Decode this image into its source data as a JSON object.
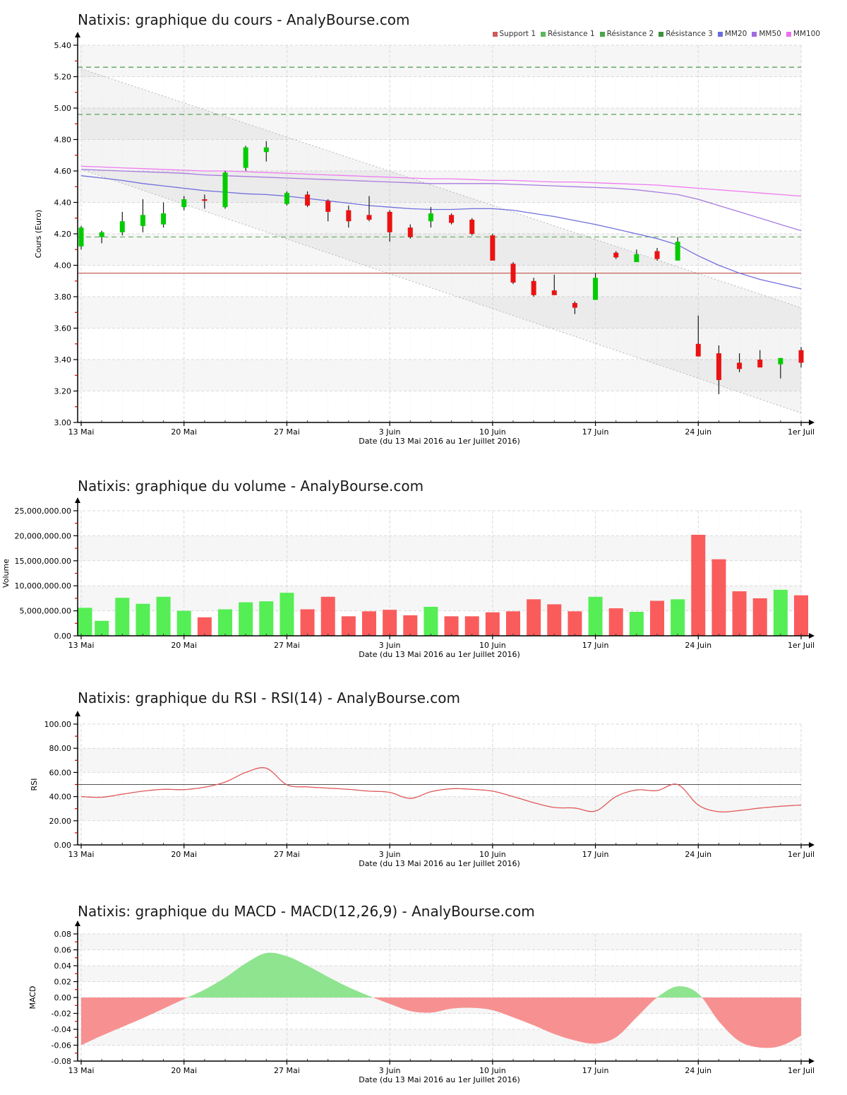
{
  "chart_data": [
    {
      "id": "cours",
      "type": "candlestick",
      "title": "Natixis: graphique du cours - AnalyBourse.com",
      "xlabel": "Date (du 13 Mai 2016 au 1er Juillet 2016)",
      "ylabel": "Cours (Euro)",
      "ylim": [
        3.0,
        5.4
      ],
      "y_tick_labels": [
        "3.00",
        "3.20",
        "3.40",
        "3.60",
        "3.80",
        "4.00",
        "4.20",
        "4.40",
        "4.60",
        "4.80",
        "5.00",
        "5.20",
        "5.40"
      ],
      "x_tick_labels": [
        "13 Mai",
        "20 Mai",
        "27 Mai",
        "3 Juin",
        "10 Juin",
        "17 Juin",
        "24 Juin",
        "1er Juil"
      ],
      "x_tick_day_index": [
        0,
        5,
        10,
        15,
        20,
        25,
        30,
        35
      ],
      "dates": [
        "2016-05-13",
        "2016-05-16",
        "2016-05-17",
        "2016-05-18",
        "2016-05-19",
        "2016-05-20",
        "2016-05-23",
        "2016-05-24",
        "2016-05-25",
        "2016-05-26",
        "2016-05-27",
        "2016-05-30",
        "2016-05-31",
        "2016-06-01",
        "2016-06-02",
        "2016-06-03",
        "2016-06-06",
        "2016-06-07",
        "2016-06-08",
        "2016-06-09",
        "2016-06-10",
        "2016-06-13",
        "2016-06-14",
        "2016-06-15",
        "2016-06-16",
        "2016-06-17",
        "2016-06-20",
        "2016-06-21",
        "2016-06-22",
        "2016-06-23",
        "2016-06-24",
        "2016-06-27",
        "2016-06-28",
        "2016-06-29",
        "2016-06-30",
        "2016-07-01"
      ],
      "open": [
        4.12,
        4.18,
        4.21,
        4.25,
        4.26,
        4.37,
        4.42,
        4.37,
        4.62,
        4.72,
        4.39,
        4.45,
        4.41,
        4.35,
        4.32,
        4.34,
        4.24,
        4.28,
        4.32,
        4.29,
        4.19,
        4.01,
        3.9,
        3.84,
        3.76,
        3.78,
        4.08,
        4.02,
        4.09,
        4.03,
        3.5,
        3.44,
        3.38,
        3.4,
        3.37,
        3.46
      ],
      "high": [
        4.25,
        4.22,
        4.34,
        4.42,
        4.4,
        4.44,
        4.45,
        4.6,
        4.76,
        4.79,
        4.47,
        4.47,
        4.42,
        4.38,
        4.44,
        4.35,
        4.26,
        4.37,
        4.33,
        4.3,
        4.2,
        4.02,
        3.92,
        3.94,
        3.77,
        3.95,
        4.09,
        4.1,
        4.11,
        4.18,
        3.68,
        3.49,
        3.44,
        3.46,
        3.41,
        3.48
      ],
      "low": [
        4.1,
        4.14,
        4.19,
        4.21,
        4.24,
        4.35,
        4.36,
        4.36,
        4.6,
        4.66,
        4.38,
        4.37,
        4.28,
        4.24,
        4.28,
        4.15,
        4.17,
        4.24,
        4.26,
        4.19,
        4.03,
        3.88,
        3.8,
        3.81,
        3.69,
        3.78,
        4.04,
        4.02,
        4.03,
        4.03,
        3.42,
        3.18,
        3.32,
        3.35,
        3.28,
        3.35
      ],
      "close": [
        4.24,
        4.21,
        4.28,
        4.32,
        4.33,
        4.42,
        4.41,
        4.59,
        4.75,
        4.75,
        4.46,
        4.38,
        4.34,
        4.28,
        4.29,
        4.21,
        4.18,
        4.33,
        4.27,
        4.2,
        4.03,
        3.89,
        3.81,
        3.81,
        3.73,
        3.92,
        4.05,
        4.07,
        4.04,
        4.15,
        3.42,
        3.27,
        3.34,
        3.35,
        3.41,
        3.38
      ],
      "up_color": "#00cc00",
      "down_color": "#ea1212",
      "legend": [
        {
          "label": "Support 1",
          "color": "#cd5c5c"
        },
        {
          "label": "Résistance 1",
          "color": "#5db75d"
        },
        {
          "label": "Résistance 2",
          "color": "#4aa84a"
        },
        {
          "label": "Résistance 3",
          "color": "#3a923a"
        },
        {
          "label": "MM20",
          "color": "#6b6bdf"
        },
        {
          "label": "MM50",
          "color": "#a06ae0"
        },
        {
          "label": "MM100",
          "color": "#ee6fee"
        }
      ],
      "levels": [
        {
          "name": "Support 1",
          "value": 3.95,
          "color": "#c4635d",
          "style": "solid"
        },
        {
          "name": "Résistance 1",
          "value": 4.18,
          "color": "#61ad61",
          "style": "dashed"
        },
        {
          "name": "Résistance 2",
          "value": 4.96,
          "color": "#55a455",
          "style": "dashed"
        },
        {
          "name": "Résistance 3",
          "value": 5.26,
          "color": "#499849",
          "style": "dashed"
        }
      ],
      "channel": {
        "upper_start": 5.25,
        "upper_end": 3.73,
        "lower_start": 4.61,
        "lower_end": 3.06,
        "line_color": "#b5b5b5"
      },
      "moving_averages": [
        {
          "name": "MM20",
          "color": "#7070dd",
          "values": [
            4.57,
            4.555,
            4.54,
            4.52,
            4.505,
            4.49,
            4.475,
            4.465,
            4.455,
            4.45,
            4.44,
            4.425,
            4.41,
            4.395,
            4.38,
            4.37,
            4.36,
            4.355,
            4.355,
            4.36,
            4.36,
            4.35,
            4.33,
            4.31,
            4.285,
            4.26,
            4.23,
            4.2,
            4.17,
            4.13,
            4.06,
            4.0,
            3.95,
            3.91,
            3.88,
            3.85
          ]
        },
        {
          "name": "MM50",
          "color": "#a87ae0",
          "values": [
            4.61,
            4.605,
            4.6,
            4.595,
            4.59,
            4.585,
            4.575,
            4.57,
            4.565,
            4.56,
            4.555,
            4.55,
            4.545,
            4.54,
            4.535,
            4.53,
            4.525,
            4.52,
            4.52,
            4.52,
            4.52,
            4.515,
            4.51,
            4.505,
            4.5,
            4.495,
            4.49,
            4.48,
            4.465,
            4.45,
            4.42,
            4.38,
            4.34,
            4.3,
            4.26,
            4.22
          ]
        },
        {
          "name": "MM100",
          "color": "#f07af0",
          "values": [
            4.63,
            4.625,
            4.62,
            4.615,
            4.61,
            4.605,
            4.6,
            4.6,
            4.595,
            4.59,
            4.585,
            4.58,
            4.575,
            4.57,
            4.565,
            4.56,
            4.555,
            4.55,
            4.55,
            4.545,
            4.54,
            4.54,
            4.535,
            4.53,
            4.53,
            4.525,
            4.52,
            4.515,
            4.51,
            4.5,
            4.49,
            4.48,
            4.47,
            4.46,
            4.45,
            4.44
          ]
        }
      ]
    },
    {
      "id": "volume",
      "type": "bar",
      "title": "Natixis: graphique du volume - AnalyBourse.com",
      "xlabel": "Date (du 13 Mai 2016 au 1er Juillet 2016)",
      "ylabel": "Volume",
      "ylim": [
        0,
        25000000
      ],
      "y_tick_labels": [
        "0.00",
        "5,000,000.00",
        "10,000,000.00",
        "15,000,000.00",
        "20,000,000.00",
        "25,000,000.00"
      ],
      "x_tick_labels": [
        "13 Mai",
        "20 Mai",
        "27 Mai",
        "3 Juin",
        "10 Juin",
        "17 Juin",
        "24 Juin",
        "1er Juil"
      ],
      "x_tick_day_index": [
        0,
        5,
        10,
        15,
        20,
        25,
        30,
        35
      ],
      "values": [
        5600000,
        3000000,
        7600000,
        6400000,
        7800000,
        5000000,
        3700000,
        5300000,
        6700000,
        6900000,
        8600000,
        5300000,
        7800000,
        3900000,
        4900000,
        5200000,
        4100000,
        5800000,
        3900000,
        3900000,
        4700000,
        4900000,
        7300000,
        6300000,
        4900000,
        7800000,
        5500000,
        4800000,
        7000000,
        7300000,
        20200000,
        15300000,
        8900000,
        7500000,
        9200000,
        8100000
      ],
      "direction": [
        "up",
        "up",
        "up",
        "up",
        "up",
        "up",
        "down",
        "up",
        "up",
        "up",
        "up",
        "down",
        "down",
        "down",
        "down",
        "down",
        "down",
        "up",
        "down",
        "down",
        "down",
        "down",
        "down",
        "down",
        "down",
        "up",
        "down",
        "up",
        "down",
        "up",
        "down",
        "down",
        "down",
        "down",
        "up",
        "down"
      ],
      "up_color": "#55ee55",
      "down_color": "#fa5c5c"
    },
    {
      "id": "rsi",
      "type": "line",
      "title": "Natixis: graphique du RSI - RSI(14) - AnalyBourse.com",
      "xlabel": "Date (du 13 Mai 2016 au 1er Juillet 2016)",
      "ylabel": "RSI",
      "ylim": [
        0,
        100
      ],
      "y_tick_labels": [
        "0.00",
        "20.00",
        "40.00",
        "60.00",
        "80.00",
        "100.00"
      ],
      "x_tick_labels": [
        "13 Mai",
        "20 Mai",
        "27 Mai",
        "3 Juin",
        "10 Juin",
        "17 Juin",
        "24 Juin",
        "1er Juil"
      ],
      "x_tick_day_index": [
        0,
        5,
        10,
        15,
        20,
        25,
        30,
        35
      ],
      "values": [
        40,
        39.5,
        42,
        44.5,
        46,
        45.8,
        47.8,
        52,
        60,
        63.5,
        49.8,
        48,
        47,
        46,
        44.5,
        43.5,
        38.5,
        44,
        46.5,
        46,
        44.5,
        40,
        35,
        31,
        30.5,
        28,
        40,
        45.5,
        45,
        50,
        33,
        27.5,
        28.5,
        30.5,
        32,
        33
      ],
      "mid_line": 50,
      "line_color": "#e05858",
      "mid_line_color": "#555555"
    },
    {
      "id": "macd",
      "type": "area",
      "title": "Natixis: graphique du MACD - MACD(12,26,9) - AnalyBourse.com",
      "xlabel": "Date (du 13 Mai 2016 au 1er Juillet 2016)",
      "ylabel": "MACD",
      "ylim": [
        -0.08,
        0.08
      ],
      "y_tick_labels": [
        "-0.08",
        "-0.06",
        "-0.04",
        "-0.02",
        "0.00",
        "0.02",
        "0.04",
        "0.06",
        "0.08"
      ],
      "x_tick_labels": [
        "13 Mai",
        "20 Mai",
        "27 Mai",
        "3 Juin",
        "10 Juin",
        "17 Juin",
        "24 Juin",
        "1er Juil"
      ],
      "x_tick_day_index": [
        0,
        5,
        10,
        15,
        20,
        25,
        30,
        35
      ],
      "values": [
        -0.06,
        -0.048,
        -0.037,
        -0.026,
        -0.014,
        -0.002,
        0.01,
        0.025,
        0.043,
        0.056,
        0.052,
        0.04,
        0.026,
        0.013,
        0.002,
        -0.008,
        -0.017,
        -0.019,
        -0.014,
        -0.013,
        -0.016,
        -0.025,
        -0.035,
        -0.046,
        -0.054,
        -0.058,
        -0.05,
        -0.025,
        0.0,
        0.014,
        0.005,
        -0.03,
        -0.055,
        -0.063,
        -0.061,
        -0.048
      ],
      "pos_color": "#8fe48f",
      "neg_color": "#f79191"
    }
  ]
}
